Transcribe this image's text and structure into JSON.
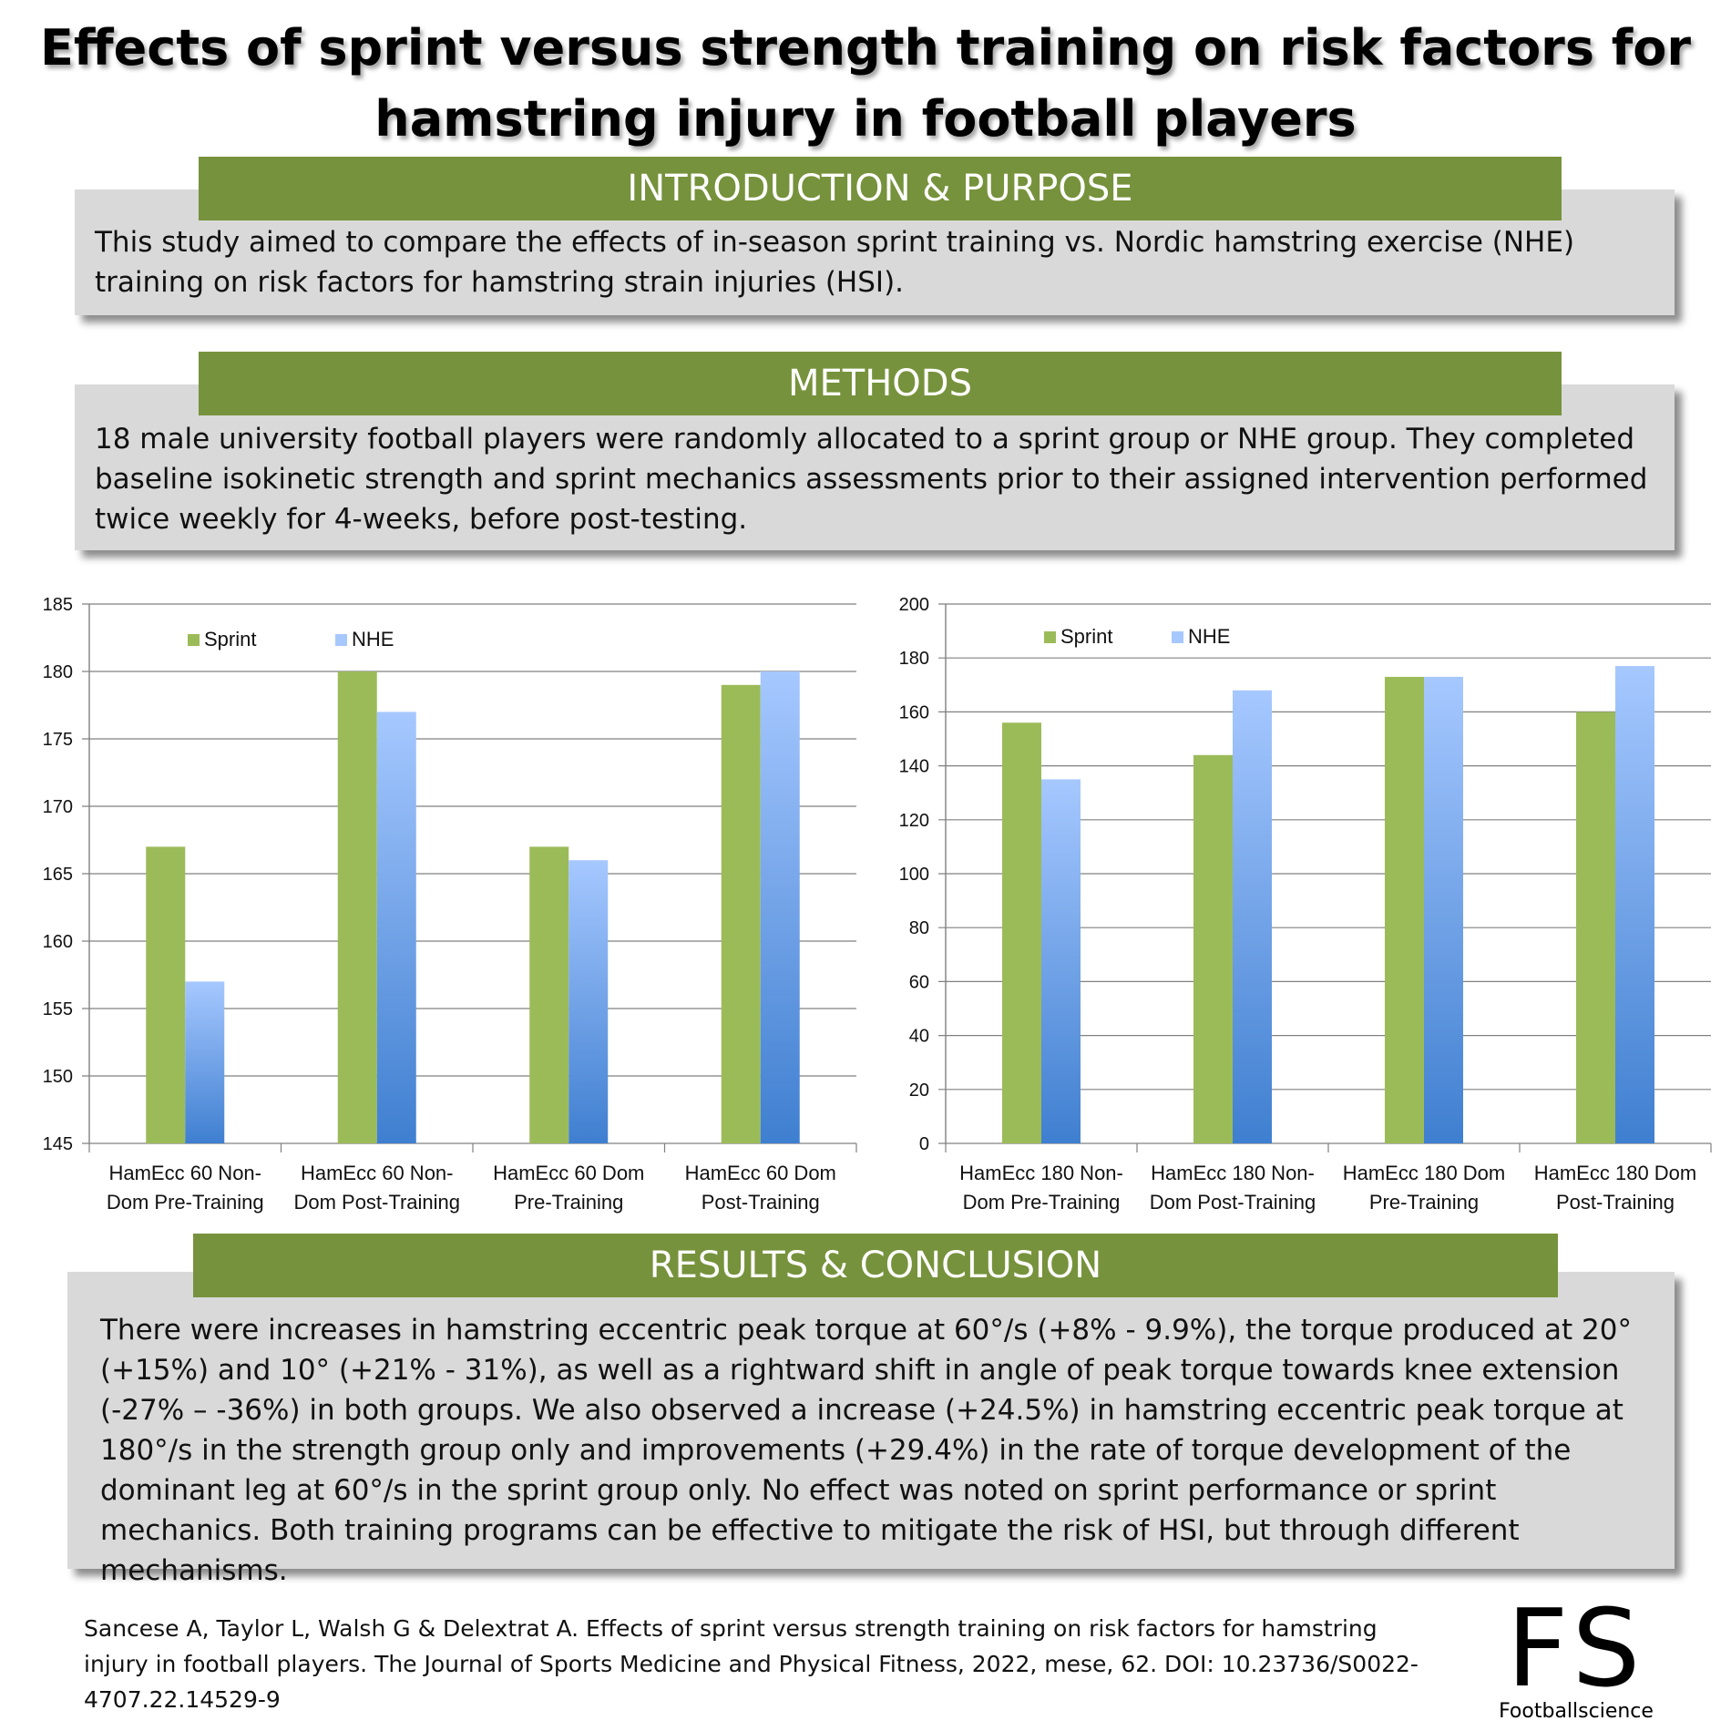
{
  "title": "Effects of sprint versus strength training on risk factors for hamstring injury in football players",
  "sections": {
    "intro": {
      "heading": "INTRODUCTION & PURPOSE",
      "text": "This study aimed to compare the effects of in-season sprint training vs. Nordic hamstring exercise (NHE) training on risk factors for hamstring strain injuries (HSI)."
    },
    "methods": {
      "heading": "METHODS",
      "text": "18 male university football players were randomly allocated to a sprint group or NHE group. They completed baseline isokinetic strength and sprint mechanics assessments prior to their assigned intervention performed twice weekly for 4-weeks, before post-testing."
    },
    "results": {
      "heading": "RESULTS & CONCLUSION",
      "text": "There were increases in hamstring eccentric peak torque at 60°/s (+8% - 9.9%), the torque produced at 20° (+15%) and 10° (+21% - 31%), as well as a rightward shift in angle of peak torque towards knee extension (-27% – -36%) in both groups. We also observed a increase (+24.5%) in hamstring eccentric peak torque at 180°/s in the strength group only and improvements (+29.4%) in the rate of torque development of the dominant leg at 60°/s in the sprint group only. No effect was noted on sprint performance or sprint mechanics. Both training programs can be effective to mitigate the risk of HSI, but through different mechanisms."
    }
  },
  "chart_data": [
    {
      "type": "bar",
      "categories": [
        [
          "HamEcc 60 Non-",
          "Dom Pre-Training"
        ],
        [
          "HamEcc 60 Non-",
          "Dom Post-Training"
        ],
        [
          "HamEcc 60 Dom",
          "Pre-Training"
        ],
        [
          "HamEcc 60 Dom",
          "Post-Training"
        ]
      ],
      "series": [
        {
          "name": "Sprint",
          "values": [
            167,
            180,
            167,
            179
          ]
        },
        {
          "name": "NHE",
          "values": [
            157,
            177,
            166,
            180
          ]
        }
      ],
      "ylim": [
        145,
        185
      ],
      "yticks": [
        145,
        150,
        155,
        160,
        165,
        170,
        175,
        180,
        185
      ],
      "grid": true,
      "legend": "top-left"
    },
    {
      "type": "bar",
      "categories": [
        [
          "HamEcc 180 Non-",
          "Dom Pre-Training"
        ],
        [
          "HamEcc 180 Non-",
          "Dom Post-Training"
        ],
        [
          "HamEcc 180 Dom",
          "Pre-Training"
        ],
        [
          "HamEcc 180 Dom",
          "Post-Training"
        ]
      ],
      "series": [
        {
          "name": "Sprint",
          "values": [
            156,
            144,
            173,
            160
          ]
        },
        {
          "name": "NHE",
          "values": [
            135,
            168,
            173,
            177
          ]
        }
      ],
      "ylim": [
        0,
        200
      ],
      "yticks": [
        0,
        20,
        40,
        60,
        80,
        100,
        120,
        140,
        160,
        180,
        200
      ],
      "grid": true,
      "legend": "top-left"
    }
  ],
  "colors": {
    "band": "#76923c",
    "sprint": "#9bbb59",
    "nhe_top": "#a6c8ff",
    "nhe_bottom": "#3f7fd0"
  },
  "citation": "Sancese A, Taylor L, Walsh G & Delextrat A. Effects of sprint versus strength training on risk factors for hamstring injury in football players. The Journal of Sports Medicine and Physical Fitness, 2022, mese, 62. DOI: 10.23736/S0022-4707.22.14529-9",
  "logo": {
    "mark": "FS",
    "wordmark": "Footballscience"
  }
}
